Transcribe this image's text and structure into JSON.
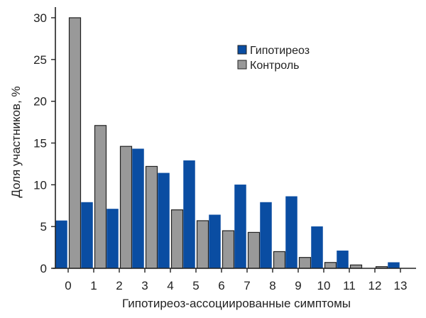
{
  "chart_data": {
    "type": "bar",
    "title": "",
    "xlabel": "Гипотиреоз-ассоциированные симптомы",
    "ylabel": "Доля участников, %",
    "ylim": [
      0,
      30
    ],
    "yticks": [
      0,
      5,
      10,
      15,
      20,
      25,
      30
    ],
    "grid": false,
    "legend_position": "upper-right",
    "categories": [
      "0",
      "1",
      "2",
      "3",
      "4",
      "5",
      "6",
      "7",
      "8",
      "9",
      "10",
      "11",
      "12",
      "13"
    ],
    "series": [
      {
        "name": "Гипотиреоз",
        "color": "#0a4da2",
        "values": [
          5.7,
          7.9,
          7.1,
          14.3,
          11.4,
          12.9,
          6.4,
          10.0,
          7.9,
          8.6,
          5.0,
          2.1,
          0.0,
          0.7
        ]
      },
      {
        "name": "Контроль",
        "color": "#999999",
        "values": [
          30.0,
          17.1,
          14.6,
          12.2,
          7.0,
          5.7,
          4.5,
          4.3,
          2.0,
          1.3,
          0.7,
          0.4,
          0.2,
          0.0
        ]
      }
    ]
  }
}
